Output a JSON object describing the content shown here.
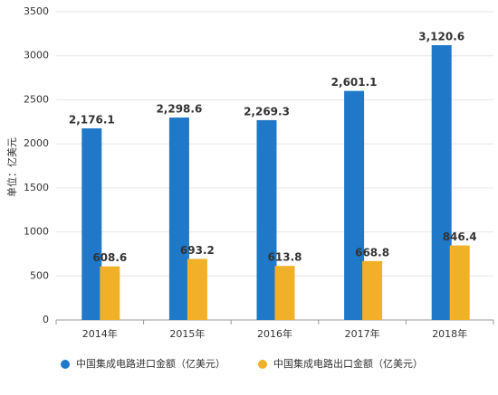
{
  "chart_data": {
    "type": "bar",
    "y_label": "单位：亿美元",
    "categories": [
      "2014年",
      "2015年",
      "2016年",
      "2017年",
      "2018年"
    ],
    "series": [
      {
        "name": "中国集成电路进口金额（亿美元）",
        "color": "#1f78c8",
        "values": [
          2176.1,
          2298.6,
          2269.3,
          2601.1,
          3120.6
        ],
        "value_labels": [
          "2,176.1",
          "2,298.6",
          "2,269.3",
          "2,601.1",
          "3,120.6"
        ]
      },
      {
        "name": "中国集成电路出口金额（亿美元）",
        "color": "#f0b028",
        "values": [
          608.6,
          693.2,
          613.8,
          668.8,
          846.4
        ]
      }
    ],
    "ylim": [
      0,
      3500
    ],
    "yticks": [
      0,
      500,
      1000,
      1500,
      2000,
      2500,
      3000,
      3500
    ],
    "grid": true
  }
}
